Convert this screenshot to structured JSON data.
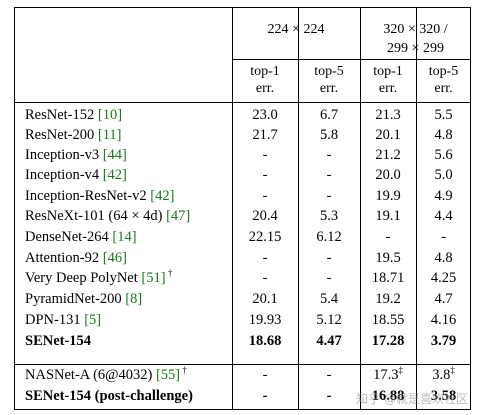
{
  "header": {
    "group1": "224 × 224",
    "group2_line1": "320 × 320 /",
    "group2_line2": "299 × 299",
    "sub": [
      {
        "l1": "top-1",
        "l2": "err."
      },
      {
        "l1": "top-5",
        "l2": "err."
      },
      {
        "l1": "top-1",
        "l2": "err."
      },
      {
        "l1": "top-5",
        "l2": "err."
      }
    ]
  },
  "rows": [
    {
      "name": "ResNet-152 ",
      "ref": "[10]",
      "mark": "",
      "v": [
        "23.0",
        "6.7",
        "21.3",
        "5.5"
      ],
      "bold": false
    },
    {
      "name": "ResNet-200 ",
      "ref": "[11]",
      "mark": "",
      "v": [
        "21.7",
        "5.8",
        "20.1",
        "4.8"
      ],
      "bold": false
    },
    {
      "name": "Inception-v3 ",
      "ref": "[44]",
      "mark": "",
      "v": [
        "-",
        "-",
        "21.2",
        "5.6"
      ],
      "bold": false
    },
    {
      "name": "Inception-v4 ",
      "ref": "[42]",
      "mark": "",
      "v": [
        "-",
        "-",
        "20.0",
        "5.0"
      ],
      "bold": false
    },
    {
      "name": "Inception-ResNet-v2 ",
      "ref": "[42]",
      "mark": "",
      "v": [
        "-",
        "-",
        "19.9",
        "4.9"
      ],
      "bold": false
    },
    {
      "name": "ResNeXt-101 (64 × 4d) ",
      "ref": "[47]",
      "mark": "",
      "v": [
        "20.4",
        "5.3",
        "19.1",
        "4.4"
      ],
      "bold": false
    },
    {
      "name": "DenseNet-264 ",
      "ref": "[14]",
      "mark": "",
      "v": [
        "22.15",
        "6.12",
        "-",
        "-"
      ],
      "bold": false
    },
    {
      "name": "Attention-92 ",
      "ref": "[46]",
      "mark": "",
      "v": [
        "-",
        "-",
        "19.5",
        "4.8"
      ],
      "bold": false
    },
    {
      "name": "Very Deep PolyNet ",
      "ref": "[51]",
      "mark": "†",
      "v": [
        "-",
        "-",
        "18.71",
        "4.25"
      ],
      "bold": false
    },
    {
      "name": "PyramidNet-200 ",
      "ref": "[8]",
      "mark": "",
      "v": [
        "20.1",
        "5.4",
        "19.2",
        "4.7"
      ],
      "bold": false
    },
    {
      "name": "DPN-131 ",
      "ref": "[5]",
      "mark": "",
      "v": [
        "19.93",
        "5.12",
        "18.55",
        "4.16"
      ],
      "bold": false
    },
    {
      "name": "SENet-154",
      "ref": "",
      "mark": "",
      "v": [
        "18.68",
        "4.47",
        "17.28",
        "3.79"
      ],
      "bold": true
    },
    {
      "name": "NASNet-A (6@4032) ",
      "ref": "[55]",
      "mark": "†",
      "v": [
        "-",
        "-",
        "17.3",
        "3.8"
      ],
      "sup3": "‡",
      "sup4": "‡",
      "bold": false
    },
    {
      "name": "SENet-154 (post-challenge)",
      "ref": "",
      "mark": "",
      "v": [
        "-",
        "-",
        "16.88",
        "3.58"
      ],
      "bold": true
    }
  ],
  "watermark": "知乎 @就是喜欢社区"
}
